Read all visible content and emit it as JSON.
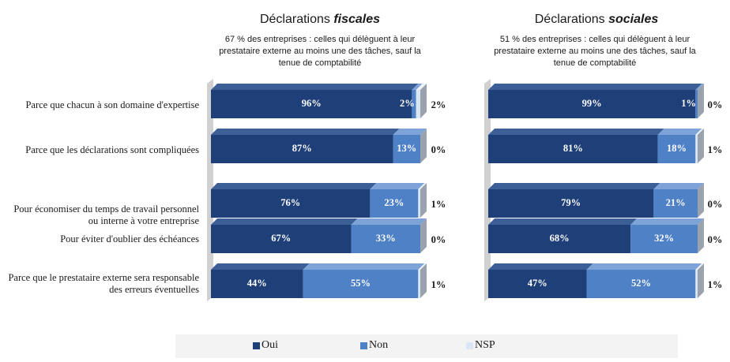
{
  "chart_data": [
    {
      "type": "bar",
      "stacked": true,
      "orientation": "horizontal",
      "title": "Déclarations fiscales",
      "title_parts": [
        "Déclarations ",
        "fiscales"
      ],
      "subtitle": "67 % des entreprises : celles qui délèguent à leur prestataire externe au moins une des tâches, sauf la tenue de comptabilité",
      "subtitle_lines": [
        "67 % des entreprises : celles qui délèguent à leur",
        "prestataire externe au moins une des tâches, sauf la",
        "tenue de comptabilité"
      ],
      "categories": [
        "Parce que chacun à son domaine d'expertise",
        "Parce que les déclarations sont compliquées",
        "Pour économiser du temps de travail personnel ou interne à votre entreprise",
        "Pour éviter d'oublier des échéances",
        "Parce que le prestataire externe sera responsable des erreurs éventuelles"
      ],
      "series": [
        {
          "name": "Oui",
          "values": [
            96,
            87,
            76,
            67,
            44
          ]
        },
        {
          "name": "Non",
          "values": [
            2,
            13,
            23,
            33,
            55
          ]
        },
        {
          "name": "NSP",
          "values": [
            2,
            0,
            1,
            0,
            1
          ]
        }
      ],
      "labels": {
        "Oui": [
          "96%",
          "87%",
          "76%",
          "67%",
          "44%"
        ],
        "Non": [
          "2%",
          "13%",
          "23%",
          "33%",
          "55%"
        ],
        "NSP": [
          "2%",
          "0%",
          "1%",
          "0%",
          "1%"
        ]
      },
      "xlim": [
        0,
        100
      ]
    },
    {
      "type": "bar",
      "stacked": true,
      "orientation": "horizontal",
      "title": "Déclarations sociales",
      "title_parts": [
        "Déclarations ",
        "sociales"
      ],
      "subtitle": "51 % des entreprises : celles qui délèguent à leur prestataire externe au moins une des tâches, sauf la tenue de comptabilité",
      "subtitle_lines": [
        "51 % des entreprises : celles qui délèguent à leur",
        "prestataire externe au moins une des tâches, sauf la",
        "tenue de comptabilité"
      ],
      "categories": [
        "Parce que chacun à son domaine d'expertise",
        "Parce que les déclarations sont compliquées",
        "Pour économiser du temps de travail personnel ou interne à votre entreprise",
        "Pour éviter d'oublier des échéances",
        "Parce que le prestataire externe sera responsable des erreurs éventuelles"
      ],
      "series": [
        {
          "name": "Oui",
          "values": [
            99,
            81,
            79,
            68,
            47
          ]
        },
        {
          "name": "Non",
          "values": [
            1,
            18,
            21,
            32,
            52
          ]
        },
        {
          "name": "NSP",
          "values": [
            0,
            1,
            0,
            0,
            1
          ]
        }
      ],
      "labels": {
        "Oui": [
          "99%",
          "81%",
          "79%",
          "68%",
          "47%"
        ],
        "Non": [
          "1%",
          "18%",
          "21%",
          "32%",
          "52%"
        ],
        "NSP": [
          "0%",
          "1%",
          "0%",
          "0%",
          "1%"
        ]
      },
      "xlim": [
        0,
        100
      ]
    }
  ],
  "category_lines": [
    [
      "Parce que chacun à son domaine d'expertise"
    ],
    [
      "Parce que les déclarations sont compliquées"
    ],
    [
      "Pour économiser du temps de travail personnel",
      "ou interne à votre entreprise"
    ],
    [
      "Pour éviter d'oublier des échéances"
    ],
    [
      "Parce que le prestataire externe sera responsable",
      "des erreurs éventuelles"
    ]
  ],
  "legend": [
    {
      "label": "Oui",
      "color": "#1f3f78"
    },
    {
      "label": "Non",
      "color": "#4f81c6"
    },
    {
      "label": "NSP",
      "color": "#dbe6f4"
    }
  ],
  "colors": {
    "oui": "#1f3f78",
    "oui_top": "#3c5f98",
    "oui_side": "#15305d",
    "non": "#4f81c6",
    "non_top": "#7ea3d8",
    "non_side": "#3a66a6",
    "nsp": "#dbe6f4",
    "nsp_top": "#eef3fa",
    "nsp_side": "#9aa3ad",
    "wall": "#d0d0d0"
  }
}
